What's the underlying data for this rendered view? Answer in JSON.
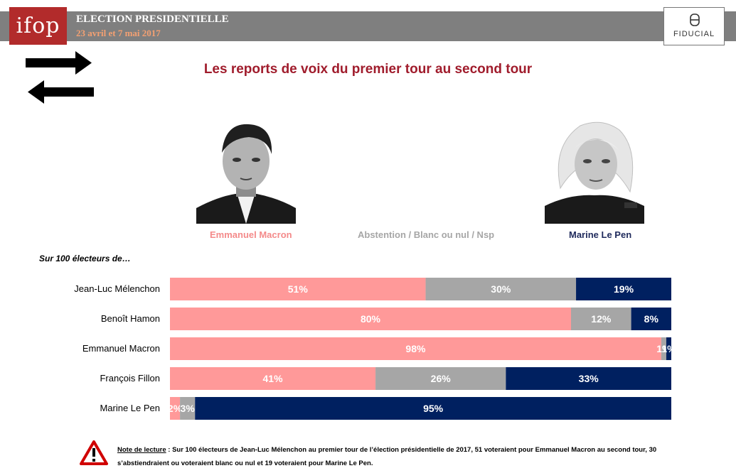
{
  "header": {
    "logo_text": "ifop",
    "title": "ELECTION PRESIDENTIELLE",
    "dates": "23 avril et 7 mai 2017",
    "partner_text": "FIDUCIAL"
  },
  "main_title": "Les reports de voix du premier tour au second tour",
  "columns": {
    "macron": "Emmanuel Macron",
    "abstention": "Abstention / Blanc ou nul / Nsp",
    "lepen": "Marine Le Pen"
  },
  "subtitle": "Sur 100 électeurs de…",
  "colors": {
    "macron": "#ff9999",
    "abstention": "#a6a6a6",
    "lepen": "#002060",
    "title": "#a01c2c",
    "header_bar": "#7f7f7f",
    "logo": "#b22b2b"
  },
  "chart_data": {
    "type": "bar",
    "orientation": "horizontal",
    "stacked": true,
    "title": "Les reports de voix du premier tour au second tour",
    "categories": [
      "Jean-Luc Mélenchon",
      "Benoît Hamon",
      "Emmanuel Macron",
      "François Fillon",
      "Marine Le Pen"
    ],
    "series": [
      {
        "name": "Emmanuel Macron",
        "values": [
          51,
          80,
          98,
          41,
          2
        ],
        "labels": [
          "51%",
          "80%",
          "98%",
          "41%",
          "2%"
        ]
      },
      {
        "name": "Abstention / Blanc ou nul / Nsp",
        "values": [
          30,
          12,
          1,
          26,
          3
        ],
        "labels": [
          "30%",
          "12%",
          "1%",
          "26%",
          "3%"
        ]
      },
      {
        "name": "Marine Le Pen",
        "values": [
          19,
          8,
          1,
          33,
          95
        ],
        "labels": [
          "19%",
          "8%",
          "1%",
          "33%",
          "95%"
        ]
      }
    ],
    "xlim": [
      0,
      100
    ]
  },
  "note": {
    "label": "Note de lecture",
    "text": " : Sur 100 électeurs de Jean-Luc Mélenchon au premier tour de l’élection présidentielle de 2017, 51 voteraient pour Emmanuel Macron au second tour, 30 s’abstiendraient ou voteraient blanc ou nul et 19 voteraient pour Marine Le Pen."
  }
}
